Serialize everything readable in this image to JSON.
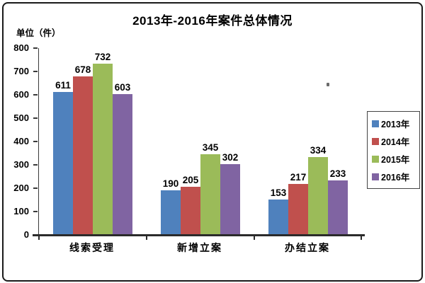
{
  "chart_data": {
    "type": "bar",
    "title": "2013年-2016年案件总体情况",
    "ylabel": "单位（件）",
    "xlabel": "",
    "categories": [
      "线索受理",
      "新增立案",
      "办结立案"
    ],
    "series": [
      {
        "name": "2013年",
        "color": "#4F81BD",
        "values": [
          611,
          190,
          153
        ]
      },
      {
        "name": "2014年",
        "color": "#C0504D",
        "values": [
          678,
          205,
          217
        ]
      },
      {
        "name": "2015年",
        "color": "#9BBB59",
        "values": [
          732,
          345,
          334
        ]
      },
      {
        "name": "2016年",
        "color": "#8064A2",
        "values": [
          603,
          302,
          233
        ]
      }
    ],
    "ylim": [
      0,
      800
    ],
    "yticks": [
      0,
      100,
      200,
      300,
      400,
      500,
      600,
      700,
      800
    ],
    "grid": false,
    "legend_position": "right",
    "data_labels": true,
    "axis_color": "#2b2b2b",
    "frame_color": "#1a1a1a"
  }
}
